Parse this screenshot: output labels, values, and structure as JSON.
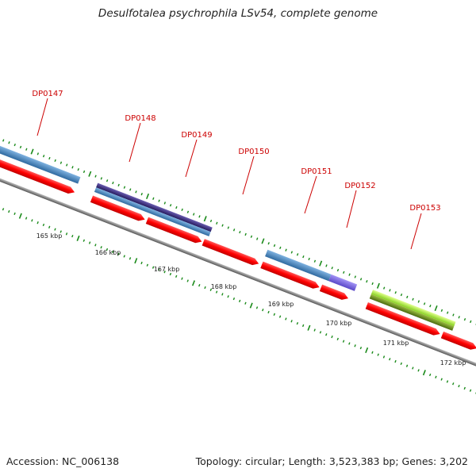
{
  "title": "Desulfotalea psychrophila LSv54, complete genome",
  "footer": {
    "accession": "Accession: NC_006138",
    "summary": "Topology: circular; Length: 3,523,383 bp; Genes: 3,202"
  },
  "genes": [
    {
      "name": "DP0147",
      "label": "DP0147"
    },
    {
      "name": "DP0148",
      "label": "DP0148"
    },
    {
      "name": "DP0149",
      "label": "DP0149"
    },
    {
      "name": "DP0150",
      "label": "DP0150"
    },
    {
      "name": "DP0151",
      "label": "DP0151"
    },
    {
      "name": "DP0152",
      "label": "DP0152"
    },
    {
      "name": "DP0153",
      "label": "DP0153"
    }
  ],
  "ticks": [
    "165 kbp",
    "166 kbp",
    "167 kbp",
    "168 kbp",
    "169 kbp",
    "170 kbp",
    "171 kbp",
    "172 kbp"
  ],
  "colors": {
    "cds": "#ff0000",
    "feature_blue": "#4a86c0",
    "feature_navy": "#3a2f7a",
    "feature_violet": "#7060d8",
    "feature_lime": "#a8f040",
    "feature_olive": "#6a8a20",
    "backbone": "#808080",
    "tick": "#1a8a1a",
    "label": "#cc0000"
  }
}
